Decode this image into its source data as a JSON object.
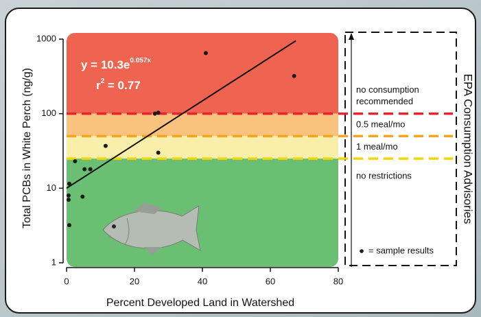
{
  "chart_data": {
    "type": "scatter",
    "x_label": "Percent Developed Land in Watershed",
    "y_label": "Total PCBs in White Perch (ng/g)",
    "x": [
      41,
      67,
      26,
      27,
      11.5,
      27,
      2.5,
      5.3,
      7,
      0.8,
      0.6,
      0.6,
      4.7,
      0.8
    ],
    "values": [
      650,
      320,
      100,
      103,
      37,
      30,
      23,
      18,
      18,
      11.5,
      8,
      7,
      7.7,
      3.2
    ],
    "color": "#1a1a1a",
    "xlim": [
      0,
      80
    ],
    "xticks": [
      0,
      20,
      40,
      60,
      80
    ],
    "ylim": [
      1,
      1000
    ],
    "yticks": [
      1,
      10,
      100,
      1000
    ],
    "log_y": true,
    "trend_line": {
      "x": [
        0,
        67.5
      ],
      "values": [
        10,
        950
      ],
      "color": "#111111"
    },
    "equation": {
      "base": "y = 10.3e",
      "exponent": "0.057x"
    },
    "r_squared": {
      "base": "r",
      "exponent": "2",
      "value": " =  0.77"
    },
    "advisory_title": "EPA Consumption Advisories",
    "advisories": [
      {
        "lines": [
          "no consumption",
          "recommended"
        ],
        "lower": 100,
        "upper": 1000,
        "fill": "#ef6450",
        "line_color": "#e8232c"
      },
      {
        "lines": [
          "0.5 meal/mo"
        ],
        "lower": 50,
        "upper": 100,
        "fill": "#f9c27f",
        "line_color": "#f5a41f"
      },
      {
        "lines": [
          "1 meal/mo"
        ],
        "lower": 25,
        "upper": 50,
        "fill": "#f9eeaa",
        "line_color": "#f0d800"
      },
      {
        "lines": [
          "no restrictions"
        ],
        "lower": 1,
        "upper": 25,
        "fill": "#6abf72"
      }
    ],
    "legend_text": "= sample results"
  }
}
